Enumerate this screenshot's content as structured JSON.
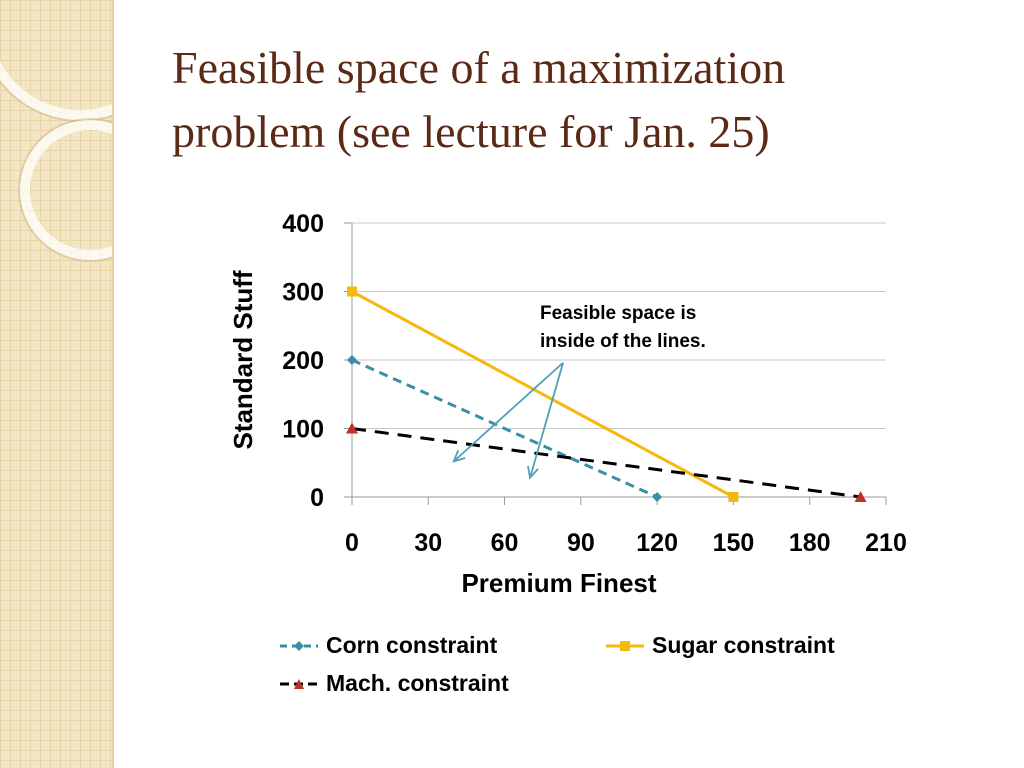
{
  "slide": {
    "title_lines": [
      "Feasible space of a maximization",
      "problem (see lecture for Jan. 25)"
    ]
  },
  "colors": {
    "title": "#5b2a17",
    "corn": "#3a8ea6",
    "sugar": "#f5b80c",
    "mach": "#000000",
    "mach_marker": "#c0302a",
    "arrow": "#4fa0b8",
    "grid": "#c8c8c8"
  },
  "chart_data": {
    "type": "line",
    "xlabel": "Premium Finest",
    "ylabel": "Standard Stuff",
    "xlim": [
      0,
      210
    ],
    "ylim": [
      0,
      400
    ],
    "xticks": [
      0,
      30,
      60,
      90,
      120,
      150,
      180,
      210
    ],
    "yticks": [
      0,
      100,
      200,
      300,
      400
    ],
    "grid": "horizontal",
    "legend_position": "bottom",
    "series": [
      {
        "name": "Corn constraint",
        "key": "corn",
        "style": "dashed",
        "marker": "diamond",
        "points": [
          [
            0,
            200
          ],
          [
            120,
            0
          ]
        ]
      },
      {
        "name": "Sugar constraint",
        "key": "sugar",
        "style": "solid",
        "marker": "square",
        "points": [
          [
            0,
            300
          ],
          [
            150,
            0
          ]
        ]
      },
      {
        "name": "Mach. constraint",
        "key": "mach",
        "style": "dashed",
        "marker": "triangle",
        "points": [
          [
            0,
            100
          ],
          [
            200,
            0
          ]
        ]
      }
    ],
    "annotation": {
      "lines": [
        "Feasible space is",
        "inside of the lines."
      ],
      "arrow_source": [
        83,
        196
      ],
      "arrow_targets": [
        [
          40,
          52
        ],
        [
          70,
          28
        ]
      ]
    }
  }
}
